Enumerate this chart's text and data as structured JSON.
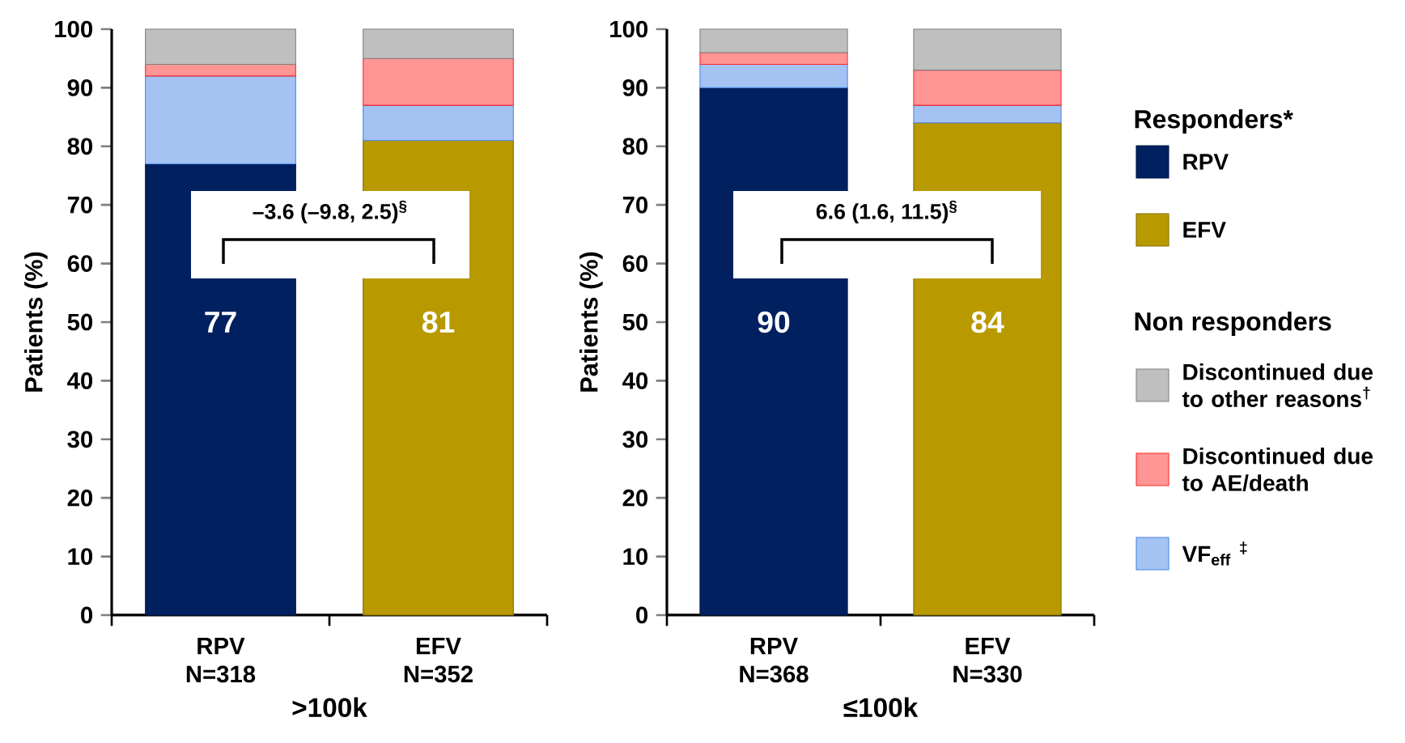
{
  "chart_data": [
    {
      "type": "bar",
      "stacked": true,
      "xlabel": ">100k",
      "ylabel": "Patients (%)",
      "categories": [
        "RPV N=318",
        "EFV N=352"
      ],
      "ylim": [
        0,
        100
      ],
      "yticks": [
        0,
        10,
        20,
        30,
        40,
        50,
        60,
        70,
        80,
        90,
        100
      ],
      "annotations": [
        "–3.6 (–9.8, 2.5)$^{§}$"
      ],
      "series": [
        {
          "color": "#002060",
          "values": [
            77,
            null
          ],
          "value_labels": [
            "77",
            null
          ]
        },
        {
          "color": "#b89a00",
          "values": [
            null,
            81
          ],
          "value_labels": [
            null,
            "81"
          ]
        },
        {
          "color": "#4a86e8",
          "values": [
            15,
            6
          ]
        },
        {
          "color": "#ff2a2a",
          "values": [
            2,
            8
          ]
        },
        {
          "color": "#808080",
          "values": [
            6,
            5
          ]
        }
      ]
    },
    {
      "type": "bar",
      "stacked": true,
      "xlabel": "≤100k",
      "ylabel": "Patients (%)",
      "categories": [
        "RPV N=368",
        "EFV N=330"
      ],
      "ylim": [
        0,
        100
      ],
      "yticks": [
        0,
        10,
        20,
        30,
        40,
        50,
        60,
        70,
        80,
        90,
        100
      ],
      "annotations": [
        "6.6 (1.6, 11.5)$^{§}$",
        "Non responders"
      ],
      "legend": "right",
      "legend_title": "Responders*",
      "series": [
        {
          "name": "RPV",
          "color": "#002060",
          "values": [
            90,
            null
          ],
          "value_labels": [
            "90",
            null
          ]
        },
        {
          "name": "EFV",
          "color": "#b89a00",
          "values": [
            null,
            84
          ],
          "value_labels": [
            null,
            "84"
          ]
        },
        {
          "name": "VF$_{eff}$ $^{‡}$",
          "color": "#4a86e8",
          "values": [
            4,
            3
          ]
        },
        {
          "name": "Discontinued due to AE/death",
          "color": "#ff2a2a",
          "values": [
            2,
            6
          ]
        },
        {
          "name": "Discontinued due to other reasons$^{†}$",
          "color": "#808080",
          "values": [
            4,
            7
          ]
        }
      ]
    }
  ]
}
